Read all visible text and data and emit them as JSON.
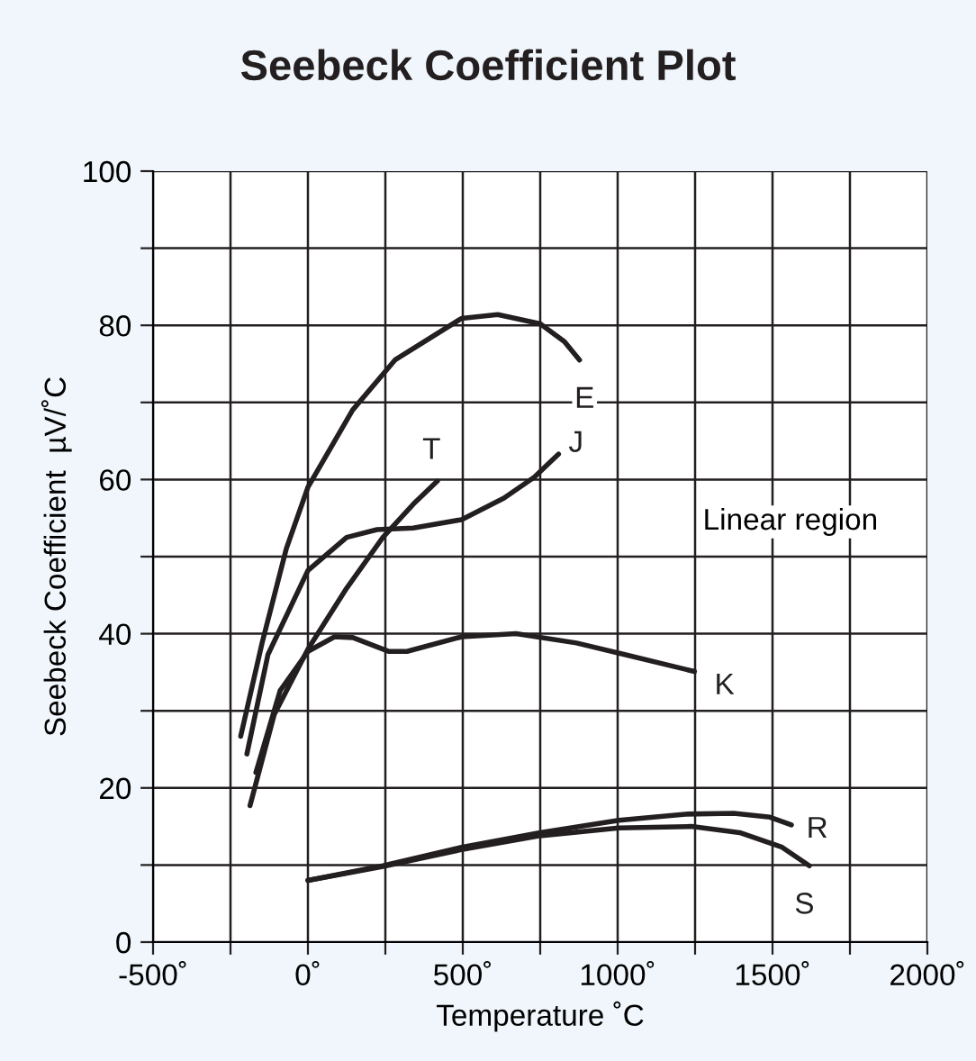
{
  "chart_data": {
    "type": "line",
    "title": "Seebeck Coefficient Plot",
    "xlabel": "Temperature ˚C",
    "ylabel": "Seebeck Coefficient  µV/˚C",
    "annotations": [
      "Linear region"
    ],
    "xlim": [
      -500,
      2000
    ],
    "ylim": [
      0,
      100
    ],
    "xticks": [
      {
        "value": -500,
        "label": "-500˚"
      },
      {
        "value": -250,
        "label": null
      },
      {
        "value": 0,
        "label": "0˚"
      },
      {
        "value": 250,
        "label": null
      },
      {
        "value": 500,
        "label": "500˚"
      },
      {
        "value": 750,
        "label": null
      },
      {
        "value": 1000,
        "label": "1000˚"
      },
      {
        "value": 1250,
        "label": null
      },
      {
        "value": 1500,
        "label": "1500˚"
      },
      {
        "value": 1750,
        "label": null
      },
      {
        "value": 2000,
        "label": "2000˚"
      }
    ],
    "yticks": [
      0,
      {
        "value": 10,
        "label": null
      },
      20,
      {
        "value": 30,
        "label": null
      },
      40,
      {
        "value": 50,
        "label": null
      },
      60,
      {
        "value": 70,
        "label": null
      },
      80,
      {
        "value": 90,
        "label": null
      },
      100
    ],
    "grid": true,
    "marker": "none",
    "line_style": "solid",
    "legend": false,
    "series": [
      {
        "name": "E",
        "color": "#231f20",
        "x": [
          -217,
          -148,
          -70,
          0,
          144,
          281,
          496,
          613,
          750,
          828,
          877
        ],
        "values": [
          26.7,
          38.8,
          51,
          59,
          69,
          75.5,
          80.9,
          81.4,
          80.2,
          77.9,
          75.5
        ]
      },
      {
        "name": "J",
        "color": "#231f20",
        "x": [
          -197,
          -129,
          0,
          125,
          223,
          340,
          496,
          633,
          731,
          809
        ],
        "values": [
          24.4,
          37.3,
          48.2,
          52.5,
          53.5,
          53.7,
          54.8,
          57.6,
          60.3,
          63.3
        ]
      },
      {
        "name": "T",
        "color": "#231f20",
        "x": [
          -187,
          -109,
          0,
          125,
          242,
          340,
          418
        ],
        "values": [
          17.7,
          29.5,
          38,
          45.9,
          52.5,
          56.8,
          59.8
        ]
      },
      {
        "name": "K",
        "color": "#231f20",
        "x": [
          -168,
          -90,
          0,
          86,
          145,
          262,
          320,
          496,
          672,
          867,
          1023,
          1248
        ],
        "values": [
          22,
          32.6,
          37.7,
          39.6,
          39.5,
          37.7,
          37.7,
          39.6,
          40,
          38.8,
          37.3,
          35.1
        ]
      },
      {
        "name": "R",
        "color": "#231f20",
        "x": [
          0,
          242,
          496,
          750,
          1004,
          1219,
          1375,
          1492,
          1561
        ],
        "values": [
          8,
          9.9,
          12.3,
          14.2,
          15.8,
          16.6,
          16.7,
          16.2,
          15.2
        ]
      },
      {
        "name": "S",
        "color": "#231f20",
        "x": [
          0,
          242,
          496,
          750,
          1004,
          1238,
          1394,
          1531,
          1619
        ],
        "values": [
          8,
          9.8,
          12,
          13.8,
          14.8,
          15,
          14.2,
          12.3,
          9.9
        ]
      }
    ]
  }
}
